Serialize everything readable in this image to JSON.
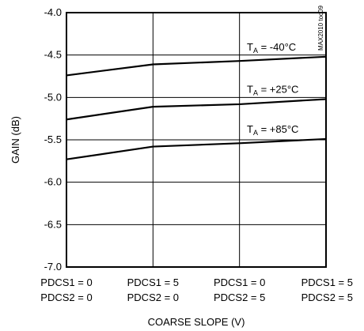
{
  "chart_data": {
    "type": "line",
    "title": "",
    "xlabel": "COARSE SLOPE (V)",
    "ylabel": "GAIN (dB)",
    "ylim": [
      -7.0,
      -4.0
    ],
    "y_ticks": [
      "-4.0",
      "-4.5",
      "-5.0",
      "-5.5",
      "-6.0",
      "-6.5",
      "-7.0"
    ],
    "y_tick_values": [
      -4.0,
      -4.5,
      -5.0,
      -5.5,
      -6.0,
      -6.5,
      -7.0
    ],
    "x": [
      0,
      1,
      2,
      3
    ],
    "x_tick_labels": [
      {
        "line1": "PDCS1 = 0",
        "line2": "PDCS2 = 0"
      },
      {
        "line1": "PDCS1 = 5",
        "line2": "PDCS2 = 0"
      },
      {
        "line1": "PDCS1 = 0",
        "line2": "PDCS2 = 5"
      },
      {
        "line1": "PDCS1 = 5",
        "line2": "PDCS2 = 5"
      }
    ],
    "grid": true,
    "series": [
      {
        "name_main": "T",
        "name_sub": "A",
        "name_rest": " = -40°C",
        "values": [
          -4.74,
          -4.61,
          -4.57,
          -4.52
        ]
      },
      {
        "name_main": "T",
        "name_sub": "A",
        "name_rest": " = +25°C",
        "values": [
          -5.26,
          -5.11,
          -5.08,
          -5.02
        ]
      },
      {
        "name_main": "T",
        "name_sub": "A",
        "name_rest": " = +85°C",
        "values": [
          -5.73,
          -5.58,
          -5.54,
          -5.49
        ]
      }
    ],
    "watermark": "MAX2010 toc09"
  }
}
